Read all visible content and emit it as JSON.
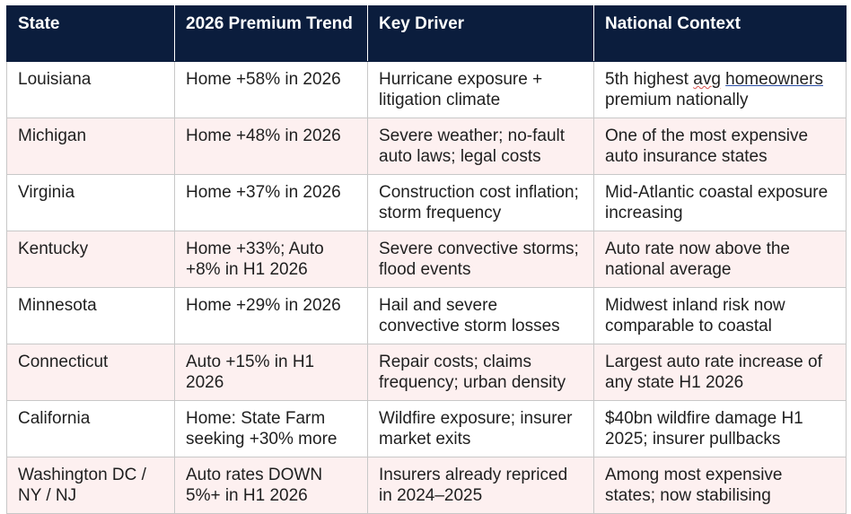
{
  "table": {
    "headers": [
      "State",
      "2026 Premium Trend",
      "Key Driver",
      "National Context"
    ],
    "rows": [
      {
        "state": "Louisiana",
        "trend": "Home +58% in 2026",
        "driver": "Hurricane exposure + litigation climate",
        "context_pre": "5th highest ",
        "context_flag": "avg",
        "context_link": "homeowners",
        "context_post": " premium nationally"
      },
      {
        "state": "Michigan",
        "trend": "Home +48% in 2026",
        "driver": "Severe weather; no-fault auto laws; legal costs",
        "context": "One of the most expensive auto insurance states"
      },
      {
        "state": "Virginia",
        "trend": "Home +37% in 2026",
        "driver": "Construction cost inflation; storm frequency",
        "context": "Mid-Atlantic coastal exposure increasing"
      },
      {
        "state": "Kentucky",
        "trend": "Home +33%; Auto +8% in H1 2026",
        "driver": "Severe convective storms; flood events",
        "context": "Auto rate now above the national average"
      },
      {
        "state": "Minnesota",
        "trend": "Home +29% in 2026",
        "driver": "Hail and severe convective storm losses",
        "context": "Midwest inland risk now comparable to coastal"
      },
      {
        "state": "Connecticut",
        "trend": "Auto +15% in H1 2026",
        "driver": "Repair costs; claims frequency; urban density",
        "context": "Largest auto rate increase of any state H1 2026"
      },
      {
        "state": "California",
        "trend": "Home: State Farm seeking +30% more",
        "driver": "Wildfire exposure; insurer market exits",
        "context": "$40bn wildfire damage H1 2025; insurer pullbacks"
      },
      {
        "state": "Washington DC / NY / NJ",
        "trend": "Auto rates DOWN 5%+ in H1 2026",
        "driver": "Insurers already repriced in 2024–2025",
        "context": "Among most expensive states; now stabilising"
      }
    ]
  }
}
